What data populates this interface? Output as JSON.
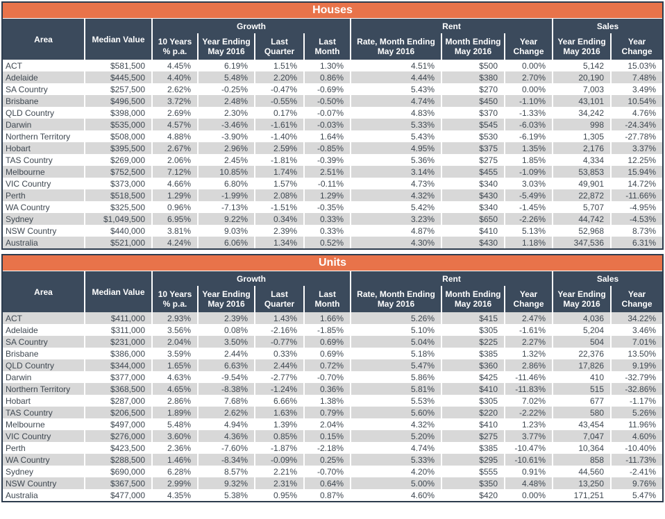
{
  "colors": {
    "accent_orange": "#E8734A",
    "header_navy": "#3B4A5C",
    "border_navy": "#2C3B4D",
    "stripe_gray": "#D8D8D8",
    "row_white": "#FFFFFF",
    "data_text": "#3E4750",
    "header_text": "#FFFFFF"
  },
  "column_headers": {
    "area": "Area",
    "median_value": "Median Value",
    "groups": {
      "growth": "Growth",
      "rent": "Rent",
      "sales": "Sales"
    },
    "growth_cols": [
      "10 Years\n% p.a.",
      "Year Ending\nMay 2016",
      "Last\nQuarter",
      "Last\nMonth"
    ],
    "rent_cols": [
      "Rate, Month Ending\nMay 2016",
      "Month Ending\nMay 2016",
      "Year\nChange"
    ],
    "sales_cols": [
      "Year Ending\nMay 2016",
      "Year\nChange"
    ]
  },
  "tables": [
    {
      "title": "Houses",
      "rows": [
        [
          "ACT",
          "$581,500",
          "4.45%",
          "6.19%",
          "1.51%",
          "1.30%",
          "4.51%",
          "$500",
          "0.00%",
          "5,142",
          "15.03%"
        ],
        [
          "Adelaide",
          "$445,500",
          "4.40%",
          "5.48%",
          "2.20%",
          "0.86%",
          "4.44%",
          "$380",
          "2.70%",
          "20,190",
          "7.48%"
        ],
        [
          "SA Country",
          "$257,500",
          "2.62%",
          "-0.25%",
          "-0.47%",
          "-0.69%",
          "5.43%",
          "$270",
          "0.00%",
          "7,003",
          "3.49%"
        ],
        [
          "Brisbane",
          "$496,500",
          "3.72%",
          "2.48%",
          "-0.55%",
          "-0.50%",
          "4.74%",
          "$450",
          "-1.10%",
          "43,101",
          "10.54%"
        ],
        [
          "QLD Country",
          "$398,000",
          "2.69%",
          "2.30%",
          "0.17%",
          "-0.07%",
          "4.83%",
          "$370",
          "-1.33%",
          "34,242",
          "4.76%"
        ],
        [
          "Darwin",
          "$535,000",
          "4.57%",
          "-3.46%",
          "-1.61%",
          "-0.03%",
          "5.33%",
          "$545",
          "-6.03%",
          "998",
          "-24.34%"
        ],
        [
          "Northern Territory",
          "$508,000",
          "4.88%",
          "-3.90%",
          "-1.40%",
          "1.64%",
          "5.43%",
          "$530",
          "-6.19%",
          "1,305",
          "-27.78%"
        ],
        [
          "Hobart",
          "$395,500",
          "2.67%",
          "2.96%",
          "2.59%",
          "-0.85%",
          "4.95%",
          "$375",
          "1.35%",
          "2,176",
          "3.37%"
        ],
        [
          "TAS Country",
          "$269,000",
          "2.06%",
          "2.45%",
          "-1.81%",
          "-0.39%",
          "5.36%",
          "$275",
          "1.85%",
          "4,334",
          "12.25%"
        ],
        [
          "Melbourne",
          "$752,500",
          "7.12%",
          "10.85%",
          "1.74%",
          "2.51%",
          "3.14%",
          "$455",
          "-1.09%",
          "53,853",
          "15.94%"
        ],
        [
          "VIC Country",
          "$373,000",
          "4.66%",
          "6.80%",
          "1.57%",
          "-0.11%",
          "4.73%",
          "$340",
          "3.03%",
          "49,901",
          "14.72%"
        ],
        [
          "Perth",
          "$518,500",
          "1.29%",
          "-1.99%",
          "2.08%",
          "1.29%",
          "4.32%",
          "$430",
          "-5.49%",
          "22,872",
          "-11.66%"
        ],
        [
          "WA Country",
          "$325,500",
          "0.96%",
          "-7.13%",
          "-1.51%",
          "-0.35%",
          "5.42%",
          "$340",
          "-1.45%",
          "5,707",
          "-4.95%"
        ],
        [
          "Sydney",
          "$1,049,500",
          "6.95%",
          "9.22%",
          "0.34%",
          "0.33%",
          "3.23%",
          "$650",
          "-2.26%",
          "44,742",
          "-4.53%"
        ],
        [
          "NSW Country",
          "$440,000",
          "3.81%",
          "9.03%",
          "2.39%",
          "0.33%",
          "4.87%",
          "$410",
          "5.13%",
          "52,968",
          "8.73%"
        ],
        [
          "Australia",
          "$521,000",
          "4.24%",
          "6.06%",
          "1.34%",
          "0.52%",
          "4.30%",
          "$430",
          "1.18%",
          "347,536",
          "6.31%"
        ]
      ]
    },
    {
      "title": "Units",
      "rows": [
        [
          "ACT",
          "$411,000",
          "2.93%",
          "2.39%",
          "1.43%",
          "1.66%",
          "5.26%",
          "$415",
          "2.47%",
          "4,036",
          "34.22%"
        ],
        [
          "Adelaide",
          "$311,000",
          "3.56%",
          "0.08%",
          "-2.16%",
          "-1.85%",
          "5.10%",
          "$305",
          "-1.61%",
          "5,204",
          "3.46%"
        ],
        [
          "SA Country",
          "$231,000",
          "2.04%",
          "3.50%",
          "-0.77%",
          "0.69%",
          "5.04%",
          "$225",
          "2.27%",
          "504",
          "7.01%"
        ],
        [
          "Brisbane",
          "$386,000",
          "3.59%",
          "2.44%",
          "0.33%",
          "0.69%",
          "5.18%",
          "$385",
          "1.32%",
          "22,376",
          "13.50%"
        ],
        [
          "QLD Country",
          "$344,000",
          "1.65%",
          "6.63%",
          "2.44%",
          "0.72%",
          "5.47%",
          "$360",
          "2.86%",
          "17,826",
          "9.19%"
        ],
        [
          "Darwin",
          "$377,000",
          "4.63%",
          "-9.54%",
          "-2.77%",
          "-0.70%",
          "5.86%",
          "$425",
          "-11.46%",
          "410",
          "-32.79%"
        ],
        [
          "Northern Territory",
          "$368,500",
          "4.65%",
          "-8.38%",
          "-1.24%",
          "0.36%",
          "5.81%",
          "$410",
          "-11.83%",
          "515",
          "-32.86%"
        ],
        [
          "Hobart",
          "$287,000",
          "2.86%",
          "7.68%",
          "6.66%",
          "1.38%",
          "5.53%",
          "$305",
          "7.02%",
          "677",
          "-1.17%"
        ],
        [
          "TAS Country",
          "$206,500",
          "1.89%",
          "2.62%",
          "1.63%",
          "0.79%",
          "5.60%",
          "$220",
          "-2.22%",
          "580",
          "5.26%"
        ],
        [
          "Melbourne",
          "$497,000",
          "5.48%",
          "4.94%",
          "1.39%",
          "2.04%",
          "4.32%",
          "$410",
          "1.23%",
          "43,454",
          "11.96%"
        ],
        [
          "VIC Country",
          "$276,000",
          "3.60%",
          "4.36%",
          "0.85%",
          "0.15%",
          "5.20%",
          "$275",
          "3.77%",
          "7,047",
          "4.60%"
        ],
        [
          "Perth",
          "$423,500",
          "2.36%",
          "-7.60%",
          "-1.87%",
          "-2.18%",
          "4.74%",
          "$385",
          "-10.47%",
          "10,364",
          "-10.40%"
        ],
        [
          "WA Country",
          "$288,500",
          "1.46%",
          "-8.34%",
          "-0.09%",
          "0.25%",
          "5.33%",
          "$295",
          "-10.61%",
          "858",
          "-11.73%"
        ],
        [
          "Sydney",
          "$690,000",
          "6.28%",
          "8.57%",
          "2.21%",
          "-0.70%",
          "4.20%",
          "$555",
          "0.91%",
          "44,560",
          "-2.41%"
        ],
        [
          "NSW Country",
          "$367,500",
          "2.99%",
          "9.32%",
          "2.31%",
          "0.64%",
          "5.00%",
          "$350",
          "4.48%",
          "13,250",
          "9.76%"
        ],
        [
          "Australia",
          "$477,000",
          "4.35%",
          "5.38%",
          "0.95%",
          "0.87%",
          "4.60%",
          "$420",
          "0.00%",
          "171,251",
          "5.47%"
        ]
      ]
    }
  ]
}
